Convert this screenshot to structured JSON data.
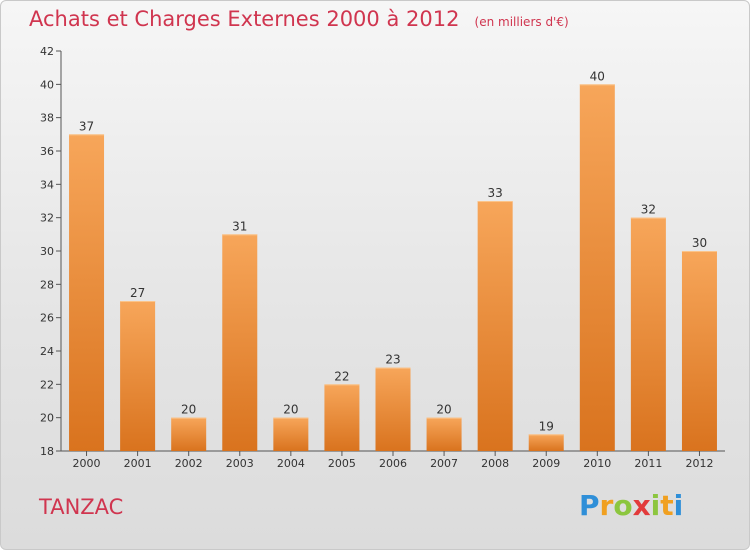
{
  "header": {
    "title": "Achats et Charges Externes 2000 à 2012",
    "unit": "(en milliers d'€)"
  },
  "footer": {
    "commune": "TANZAC",
    "logo_text": "Proxiti"
  },
  "colors": {
    "bar_light": "#f7a65a",
    "bar_dark": "#d9731e",
    "title": "#d0354f"
  },
  "chart_data": {
    "type": "bar",
    "title": "Achats et Charges Externes 2000 à 2012",
    "subtitle": "(en milliers d'€)",
    "categories": [
      "2000",
      "2001",
      "2002",
      "2003",
      "2004",
      "2005",
      "2006",
      "2007",
      "2008",
      "2009",
      "2010",
      "2011",
      "2012"
    ],
    "values": [
      37,
      27,
      20,
      31,
      20,
      22,
      23,
      20,
      33,
      19,
      40,
      32,
      30
    ],
    "ylim": [
      18,
      42
    ],
    "yticks": [
      18,
      20,
      22,
      24,
      26,
      28,
      30,
      32,
      34,
      36,
      38,
      40,
      42
    ],
    "grid": false,
    "legend": "none"
  }
}
